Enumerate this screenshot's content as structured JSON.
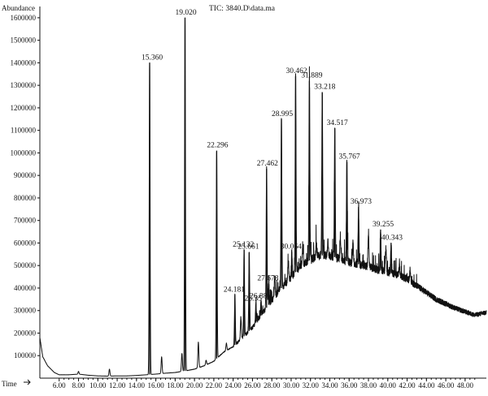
{
  "chart_data": {
    "type": "line",
    "title": "TIC: 3840.D\\data.ma",
    "xlabel": "Time",
    "ylabel": "Abundance",
    "xlim": [
      4.0,
      50.2
    ],
    "ylim": [
      0,
      1650000
    ],
    "x_ticks": [
      "6.00",
      "8.00",
      "10.00",
      "12.00",
      "14.00",
      "16.00",
      "18.00",
      "20.00",
      "22.00",
      "24.00",
      "26.00",
      "28.00",
      "30.00",
      "32.00",
      "34.00",
      "36.00",
      "38.00",
      "40.00",
      "42.00",
      "44.00",
      "46.00",
      "48.00"
    ],
    "y_ticks": [
      "100000",
      "200000",
      "300000",
      "400000",
      "500000",
      "600000",
      "700000",
      "800000",
      "900000",
      "1000000",
      "1100000",
      "1200000",
      "1300000",
      "1400000",
      "1500000",
      "1600000"
    ],
    "baseline": [
      {
        "x": 4.0,
        "y": 180000
      },
      {
        "x": 4.3,
        "y": 95000
      },
      {
        "x": 4.8,
        "y": 55000
      },
      {
        "x": 5.5,
        "y": 25000
      },
      {
        "x": 6.0,
        "y": 15000
      },
      {
        "x": 7.0,
        "y": 15000
      },
      {
        "x": 8.0,
        "y": 18000
      },
      {
        "x": 9.0,
        "y": 13000
      },
      {
        "x": 10.0,
        "y": 10000
      },
      {
        "x": 11.0,
        "y": 9000
      },
      {
        "x": 12.0,
        "y": 10000
      },
      {
        "x": 13.0,
        "y": 10000
      },
      {
        "x": 14.0,
        "y": 12000
      },
      {
        "x": 15.0,
        "y": 15000
      },
      {
        "x": 16.0,
        "y": 18000
      },
      {
        "x": 17.0,
        "y": 22000
      },
      {
        "x": 18.0,
        "y": 25000
      },
      {
        "x": 19.0,
        "y": 32000
      },
      {
        "x": 20.0,
        "y": 40000
      },
      {
        "x": 21.0,
        "y": 55000
      },
      {
        "x": 22.0,
        "y": 75000
      },
      {
        "x": 23.0,
        "y": 115000
      },
      {
        "x": 24.0,
        "y": 140000
      },
      {
        "x": 25.0,
        "y": 180000
      },
      {
        "x": 26.0,
        "y": 225000
      },
      {
        "x": 27.0,
        "y": 285000
      },
      {
        "x": 28.0,
        "y": 345000
      },
      {
        "x": 29.0,
        "y": 400000
      },
      {
        "x": 30.0,
        "y": 445000
      },
      {
        "x": 31.0,
        "y": 500000
      },
      {
        "x": 32.0,
        "y": 525000
      },
      {
        "x": 33.0,
        "y": 545000
      },
      {
        "x": 34.0,
        "y": 545000
      },
      {
        "x": 35.0,
        "y": 530000
      },
      {
        "x": 36.0,
        "y": 515000
      },
      {
        "x": 37.0,
        "y": 505000
      },
      {
        "x": 38.0,
        "y": 495000
      },
      {
        "x": 39.0,
        "y": 480000
      },
      {
        "x": 40.0,
        "y": 470000
      },
      {
        "x": 41.0,
        "y": 460000
      },
      {
        "x": 42.0,
        "y": 440000
      },
      {
        "x": 43.0,
        "y": 410000
      },
      {
        "x": 44.0,
        "y": 380000
      },
      {
        "x": 45.0,
        "y": 350000
      },
      {
        "x": 46.0,
        "y": 330000
      },
      {
        "x": 47.0,
        "y": 310000
      },
      {
        "x": 48.0,
        "y": 295000
      },
      {
        "x": 49.0,
        "y": 280000
      },
      {
        "x": 50.0,
        "y": 290000
      }
    ],
    "peaks": [
      {
        "x": 15.36,
        "label": "15.360",
        "y": 1400000
      },
      {
        "x": 19.02,
        "label": "19.020",
        "y": 1600000
      },
      {
        "x": 22.296,
        "label": "22.296",
        "y": 1010000
      },
      {
        "x": 24.181,
        "label": "24.181",
        "y": 370000
      },
      {
        "x": 25.132,
        "label": "25.132",
        "y": 570000
      },
      {
        "x": 25.661,
        "label": "25.661",
        "y": 560000
      },
      {
        "x": 26.352,
        "label": "26.35",
        "y": 330000
      },
      {
        "x": 26.885,
        "label": "26.88",
        "y": 340000
      },
      {
        "x": 27.462,
        "label": "27.462",
        "y": 930000
      },
      {
        "x": 27.678,
        "label": "27.678",
        "y": 420000
      },
      {
        "x": 28.995,
        "label": "28.995",
        "y": 1150000
      },
      {
        "x": 30.064,
        "label": "30.064",
        "y": 560000
      },
      {
        "x": 30.462,
        "label": "30.462",
        "y": 1340000
      },
      {
        "x": 31.889,
        "label": "31.889",
        "y": 1320000
      },
      {
        "x": 33.218,
        "label": "33.218",
        "y": 1270000
      },
      {
        "x": 34.517,
        "label": "34.517",
        "y": 1110000
      },
      {
        "x": 35.767,
        "label": "35.767",
        "y": 960000
      },
      {
        "x": 36.973,
        "label": "36.973",
        "y": 760000
      },
      {
        "x": 39.255,
        "label": "39.255",
        "y": 660000
      },
      {
        "x": 40.343,
        "label": "40.343",
        "y": 600000
      }
    ],
    "minor_peaks": [
      {
        "x": 8.0,
        "y": 30000
      },
      {
        "x": 11.2,
        "y": 40000
      },
      {
        "x": 16.6,
        "y": 95000
      },
      {
        "x": 18.7,
        "y": 110000
      },
      {
        "x": 20.4,
        "y": 160000
      },
      {
        "x": 21.2,
        "y": 80000
      },
      {
        "x": 23.3,
        "y": 155000
      },
      {
        "x": 24.8,
        "y": 270000
      },
      {
        "x": 28.3,
        "y": 450000
      },
      {
        "x": 29.7,
        "y": 520000
      },
      {
        "x": 31.2,
        "y": 580000
      },
      {
        "x": 32.6,
        "y": 600000
      },
      {
        "x": 33.8,
        "y": 610000
      },
      {
        "x": 35.1,
        "y": 620000
      },
      {
        "x": 36.4,
        "y": 600000
      },
      {
        "x": 38.0,
        "y": 650000
      },
      {
        "x": 39.8,
        "y": 580000
      },
      {
        "x": 41.2,
        "y": 500000
      },
      {
        "x": 42.3,
        "y": 480000
      }
    ]
  }
}
